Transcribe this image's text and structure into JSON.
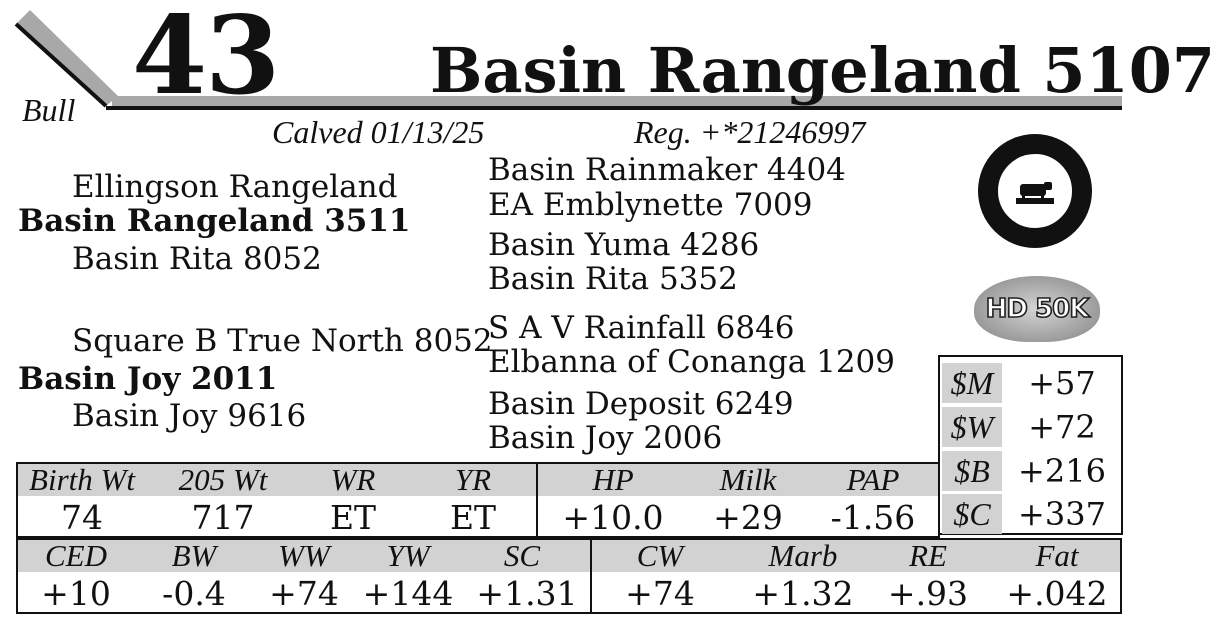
{
  "header": {
    "lot_number": "43",
    "animal_name": "Basin Rangeland 5107",
    "sex": "Bull",
    "calved": "Calved 01/13/25",
    "registration": "Reg. +*21246997"
  },
  "pedigree": {
    "sire_sire": "Ellingson Rangeland",
    "sire": "Basin Rangeland 3511",
    "sire_dam": "Basin Rita 8052",
    "dam_sire": "Square B True North 8052",
    "dam": "Basin Joy 2011",
    "dam_dam": "Basin Joy 9616",
    "sire_side_far": [
      "Basin Rainmaker 4404",
      "EA Emblynette 7009",
      "Basin Yuma 4286",
      "Basin Rita 5352"
    ],
    "dam_side_far": [
      "S A V Rainfall 6846",
      "Elbanna of Conanga 1209",
      "Basin Deposit 6249",
      "Basin Joy 2006"
    ]
  },
  "logos": {
    "seal": "certified-angus-beef-seal-icon",
    "genomic": "HD 50K"
  },
  "dollar_indexes": [
    {
      "label": "$M",
      "value": "+57"
    },
    {
      "label": "$W",
      "value": "+72"
    },
    {
      "label": "$B",
      "value": "+216"
    },
    {
      "label": "$C",
      "value": "+337"
    }
  ],
  "performance": {
    "headers": [
      "Birth Wt",
      "205 Wt",
      "WR",
      "YR",
      "HP",
      "Milk",
      "PAP"
    ],
    "values": [
      "74",
      "717",
      "ET",
      "ET",
      "+10.0",
      "+29",
      "-1.56"
    ]
  },
  "epds": {
    "headers": [
      "CED",
      "BW",
      "WW",
      "YW",
      "SC",
      "CW",
      "Marb",
      "RE",
      "Fat"
    ],
    "values": [
      "+10",
      "-0.4",
      "+74",
      "+144",
      "+1.31",
      "+74",
      "+1.32",
      "+.93",
      "+.042"
    ]
  },
  "colors": {
    "shade": "#d2d2d2",
    "stripe": "#a8a8a8",
    "ink": "#111111"
  }
}
